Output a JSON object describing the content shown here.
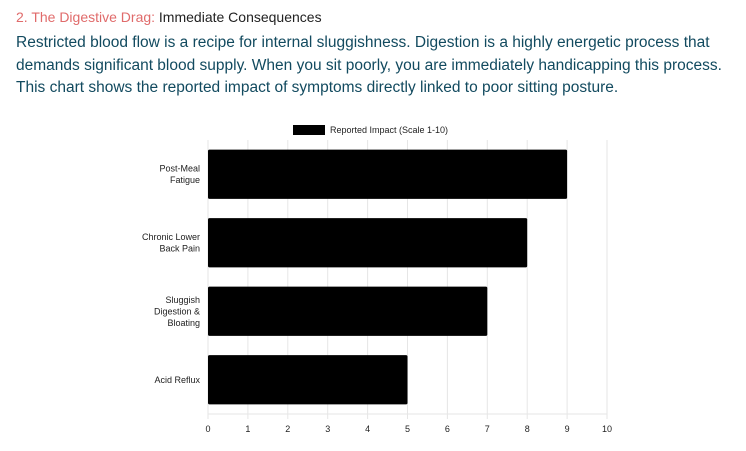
{
  "section": {
    "number_label": "2. The Digestive Drag:",
    "title": "Immediate Consequences"
  },
  "intro_text": "Restricted blood flow is a recipe for internal sluggishness. Digestion is a highly energetic process that demands significant blood supply. When you sit poorly, you are immediately handicapping this process. This chart shows the reported impact of symptoms directly linked to poor sitting posture.",
  "colors": {
    "heading_accent": "#e06b6b",
    "body_text": "#124a5f",
    "bar_fill": "#000000",
    "grid": "#e6e6e6"
  },
  "chart_data": {
    "type": "bar",
    "orientation": "horizontal",
    "title": "",
    "categories": [
      [
        "Post-Meal",
        "Fatigue"
      ],
      [
        "Chronic Lower",
        "Back Pain"
      ],
      [
        "Sluggish",
        "Digestion &",
        "Bloating"
      ],
      [
        "Acid Reflux"
      ]
    ],
    "series": [
      {
        "name": "Reported Impact (Scale 1-10)",
        "values": [
          9,
          8,
          7,
          5
        ]
      }
    ],
    "xlabel": "",
    "ylabel": "",
    "xlim": [
      0,
      10
    ],
    "xticks": [
      0,
      1,
      2,
      3,
      4,
      5,
      6,
      7,
      8,
      9,
      10
    ],
    "grid": true,
    "legend_position": "top-center"
  }
}
